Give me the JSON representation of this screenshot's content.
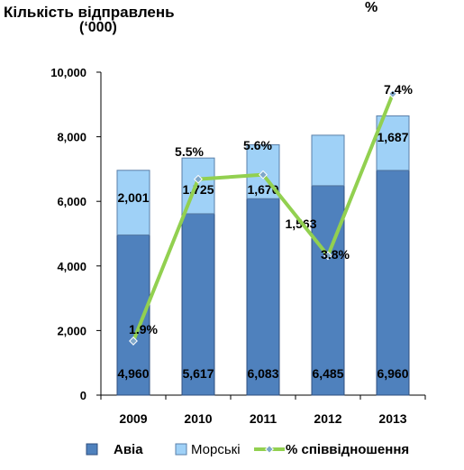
{
  "chart_data": {
    "type": "bar",
    "title": "Кількість відправлень",
    "units": "(‘000)",
    "secondary_axis_label": "%",
    "categories": [
      "2009",
      "2010",
      "2011",
      "2012",
      "2013"
    ],
    "ylim": [
      0,
      10000
    ],
    "yticks": [
      "0",
      "2,000",
      "4,000",
      "6,000",
      "8,000",
      "10,000"
    ],
    "ytick_values": [
      0,
      2000,
      4000,
      6000,
      8000,
      10000
    ],
    "stacked": true,
    "series": [
      {
        "name": "Авіа",
        "type": "bar",
        "values": [
          4960,
          5617,
          6083,
          6485,
          6960
        ],
        "labels": [
          "4,960",
          "5,617",
          "6,083",
          "6,485",
          "6,960"
        ],
        "color": "#4f81bd"
      },
      {
        "name": "Морські",
        "type": "bar",
        "values": [
          2001,
          1725,
          1670,
          1563,
          1687
        ],
        "labels": [
          "2,001",
          "1,725",
          "1,670",
          "1,563",
          "1,687"
        ],
        "color": "#9fd1f7"
      },
      {
        "name": "% співвідношення",
        "type": "line",
        "values": [
          1.9,
          5.5,
          5.6,
          3.8,
          7.4
        ],
        "labels": [
          "1.9%",
          "5.5%",
          "5.6%",
          "3.8%",
          "7.4%"
        ],
        "color": "#92d050"
      }
    ],
    "legend_position": "bottom"
  }
}
